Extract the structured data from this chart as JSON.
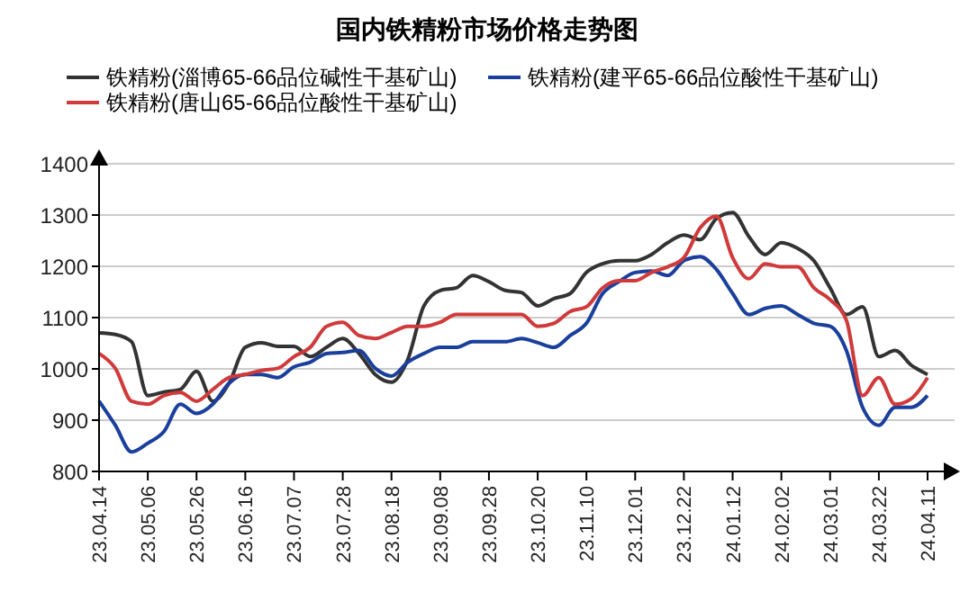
{
  "chart_data": {
    "type": "line",
    "title": "国内铁精粉市场价格走势图",
    "categories": [
      "23.04.14",
      null,
      null,
      "23.05.06",
      null,
      null,
      "23.05.26",
      null,
      null,
      "23.06.16",
      null,
      null,
      "23.07.07",
      null,
      null,
      "23.07.28",
      null,
      null,
      "23.08.18",
      null,
      null,
      "23.09.08",
      null,
      null,
      "23.09.28",
      null,
      null,
      "23.10.20",
      null,
      null,
      "23.11.10",
      null,
      null,
      "23.12.01",
      null,
      null,
      "23.12.22",
      null,
      null,
      "24.01.12",
      null,
      null,
      "24.02.02",
      null,
      null,
      "24.03.01",
      null,
      null,
      "24.03.22",
      null,
      null,
      "24.04.11"
    ],
    "series": [
      {
        "name": "铁精粉(淄博65-66品位碱性干基矿山)",
        "color": "#333333",
        "values": [
          1070,
          1067,
          1053,
          948,
          955,
          960,
          995,
          937,
          972,
          1042,
          1051,
          1044,
          1044,
          1024,
          1042,
          1059,
          1030,
          989,
          974,
          1018,
          1123,
          1153,
          1158,
          1182,
          1170,
          1153,
          1149,
          1123,
          1137,
          1147,
          1188,
          1205,
          1211,
          1211,
          1223,
          1246,
          1261,
          1252,
          1293,
          1305,
          1258,
          1223,
          1246,
          1235,
          1211,
          1158,
          1106,
          1121,
          1024,
          1036,
          1007,
          989
        ]
      },
      {
        "name": "铁精粉(建平65-66品位酸性干基矿山)",
        "color": "#1a3f9c",
        "values": [
          937,
          890,
          838,
          855,
          878,
          931,
          913,
          931,
          972,
          989,
          989,
          983,
          1004,
          1013,
          1030,
          1032,
          1036,
          1001,
          986,
          1013,
          1030,
          1042,
          1042,
          1053,
          1053,
          1053,
          1059,
          1051,
          1042,
          1065,
          1089,
          1147,
          1170,
          1188,
          1191,
          1182,
          1211,
          1219,
          1194,
          1147,
          1106,
          1118,
          1123,
          1106,
          1089,
          1083,
          1036,
          925,
          890,
          925,
          925,
          948
        ]
      },
      {
        "name": "铁精粉(唐山65-66品位酸性干基矿山)",
        "color": "#d03a3a",
        "values": [
          1030,
          1001,
          937,
          931,
          948,
          954,
          937,
          960,
          983,
          989,
          997,
          1001,
          1024,
          1042,
          1083,
          1091,
          1065,
          1059,
          1071,
          1083,
          1083,
          1091,
          1106,
          1106,
          1106,
          1106,
          1106,
          1083,
          1089,
          1112,
          1121,
          1158,
          1172,
          1172,
          1188,
          1199,
          1217,
          1275,
          1298,
          1217,
          1176,
          1205,
          1199,
          1199,
          1158,
          1135,
          1095,
          948,
          983,
          931,
          942,
          983
        ]
      }
    ],
    "ylim": [
      800,
      1400
    ],
    "yticks": [
      800,
      900,
      1000,
      1100,
      1200,
      1300,
      1400
    ],
    "grid": "y",
    "legend": "top left",
    "marker": "none",
    "line_style": "solid"
  }
}
